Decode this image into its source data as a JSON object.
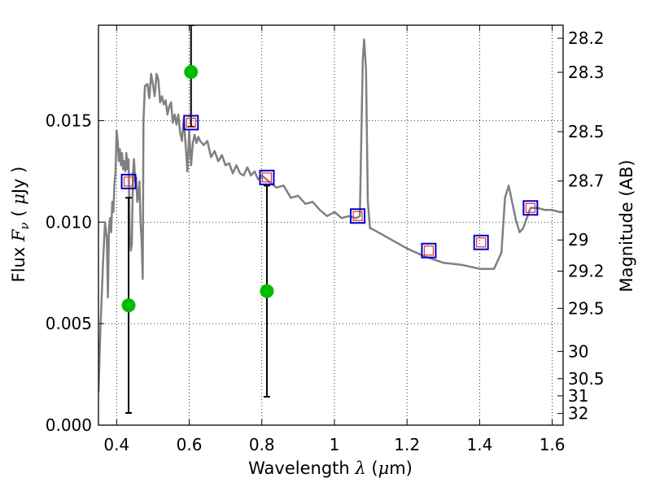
{
  "chart_data": {
    "type": "scatter",
    "xlabel": {
      "prefix": "Wavelength  ",
      "symbol": "λ",
      "open": " (",
      "unit_mu": "μ",
      "unit_rest": "m)"
    },
    "ylabel": {
      "prefix": "Flux  ",
      "symbol": "F",
      "subscript": "ν",
      "open": "  ( ",
      "unit_mu": "μ",
      "unit_rest": "Jy )"
    },
    "y2label": "Magnitude (AB)",
    "xlim": [
      0.35,
      1.63
    ],
    "ylim": [
      0.0,
      0.0197
    ],
    "grid": true,
    "xticks": [
      {
        "v": 0.4,
        "label": "0.4"
      },
      {
        "v": 0.6,
        "label": "0.6"
      },
      {
        "v": 0.8,
        "label": "0.8"
      },
      {
        "v": 1.0,
        "label": "1"
      },
      {
        "v": 1.2,
        "label": "1.2"
      },
      {
        "v": 1.4,
        "label": "1.4"
      },
      {
        "v": 1.6,
        "label": "1.6"
      }
    ],
    "yticks": [
      {
        "v": 0.0,
        "label": "0.000"
      },
      {
        "v": 0.005,
        "label": "0.005"
      },
      {
        "v": 0.01,
        "label": "0.010"
      },
      {
        "v": 0.015,
        "label": "0.015"
      }
    ],
    "y2ticks": [
      {
        "mag": 28.2,
        "label": "28.2"
      },
      {
        "mag": 28.3,
        "label": "28.3"
      },
      {
        "mag": 28.5,
        "label": "28.5"
      },
      {
        "mag": 28.7,
        "label": "28.7"
      },
      {
        "mag": 29,
        "label": "29"
      },
      {
        "mag": 29.2,
        "label": "29.2"
      },
      {
        "mag": 29.5,
        "label": "29.5"
      },
      {
        "mag": 30,
        "label": "30"
      },
      {
        "mag": 30.5,
        "label": "30.5"
      },
      {
        "mag": 31,
        "label": "31"
      },
      {
        "mag": 32,
        "label": "32"
      }
    ],
    "colors": {
      "model": "#808080",
      "observed": "#00bb00",
      "model_phot": "#0000cc",
      "model_phot_inner": "#dd3333",
      "errorbar": "#000000"
    },
    "series": [
      {
        "kind": "line",
        "x": [
          0.35,
          0.355,
          0.362,
          0.368,
          0.373,
          0.376,
          0.379,
          0.382,
          0.385,
          0.388,
          0.391,
          0.394,
          0.397,
          0.4,
          0.403,
          0.406,
          0.409,
          0.412,
          0.415,
          0.418,
          0.421,
          0.424,
          0.427,
          0.43,
          0.433,
          0.436,
          0.439,
          0.442,
          0.445,
          0.448,
          0.451,
          0.454,
          0.457,
          0.46,
          0.463,
          0.466,
          0.469,
          0.472,
          0.474,
          0.478,
          0.485,
          0.49,
          0.495,
          0.5,
          0.505,
          0.51,
          0.515,
          0.52,
          0.525,
          0.53,
          0.535,
          0.54,
          0.545,
          0.55,
          0.555,
          0.56,
          0.565,
          0.57,
          0.575,
          0.58,
          0.585,
          0.59,
          0.595,
          0.6,
          0.605,
          0.61,
          0.615,
          0.62,
          0.625,
          0.63,
          0.64,
          0.65,
          0.66,
          0.67,
          0.68,
          0.69,
          0.7,
          0.71,
          0.72,
          0.73,
          0.74,
          0.75,
          0.76,
          0.77,
          0.78,
          0.79,
          0.8,
          0.82,
          0.84,
          0.86,
          0.88,
          0.9,
          0.92,
          0.94,
          0.96,
          0.98,
          1.0,
          1.02,
          1.04,
          1.06,
          1.07,
          1.078,
          1.082,
          1.087,
          1.092,
          1.098,
          1.1,
          1.15,
          1.2,
          1.25,
          1.3,
          1.35,
          1.4,
          1.42,
          1.44,
          1.46,
          1.47,
          1.48,
          1.5,
          1.51,
          1.52,
          1.54,
          1.56,
          1.58,
          1.6,
          1.62,
          1.63
        ],
        "y": [
          0.0016,
          0.0045,
          0.0078,
          0.01,
          0.0092,
          0.0063,
          0.0097,
          0.0102,
          0.0095,
          0.011,
          0.0105,
          0.0118,
          0.0125,
          0.0145,
          0.014,
          0.013,
          0.0136,
          0.0128,
          0.0134,
          0.0126,
          0.013,
          0.0125,
          0.0134,
          0.0126,
          0.0131,
          0.0094,
          0.0086,
          0.0089,
          0.0124,
          0.0131,
          0.012,
          0.0122,
          0.011,
          0.0113,
          0.012,
          0.01,
          0.009,
          0.0072,
          0.015,
          0.0167,
          0.0168,
          0.0161,
          0.0173,
          0.0168,
          0.0162,
          0.0173,
          0.017,
          0.0159,
          0.0162,
          0.0158,
          0.016,
          0.0153,
          0.0157,
          0.0159,
          0.0149,
          0.0153,
          0.0148,
          0.0153,
          0.0144,
          0.014,
          0.0151,
          0.0138,
          0.0125,
          0.0145,
          0.0128,
          0.0139,
          0.0143,
          0.0139,
          0.0142,
          0.014,
          0.0138,
          0.014,
          0.0132,
          0.0135,
          0.013,
          0.0133,
          0.0128,
          0.0129,
          0.0124,
          0.0128,
          0.0124,
          0.0123,
          0.0127,
          0.0123,
          0.0125,
          0.0121,
          0.0123,
          0.012,
          0.0117,
          0.0118,
          0.0112,
          0.0113,
          0.0109,
          0.011,
          0.0106,
          0.0103,
          0.0105,
          0.0102,
          0.0103,
          0.0102,
          0.0103,
          0.018,
          0.019,
          0.0175,
          0.011,
          0.0097,
          0.0097,
          0.0092,
          0.0087,
          0.0083,
          0.008,
          0.0079,
          0.0077,
          0.0077,
          0.0077,
          0.0085,
          0.0112,
          0.0118,
          0.0101,
          0.0095,
          0.0097,
          0.0107,
          0.0107,
          0.0106,
          0.0106,
          0.0105,
          0.0105
        ]
      },
      {
        "kind": "observed",
        "points": [
          {
            "x": 0.433,
            "y": 0.0059,
            "yerr_low": 0.0006,
            "yerr_high": 0.0112
          },
          {
            "x": 0.605,
            "y": 0.0174,
            "yerr_low": 0.0147,
            "yerr_high": 0.0197
          },
          {
            "x": 0.814,
            "y": 0.0066,
            "yerr_low": 0.0014,
            "yerr_high": 0.0118
          }
        ]
      },
      {
        "kind": "model_photometry",
        "points": [
          {
            "x": 0.433,
            "y": 0.012
          },
          {
            "x": 0.605,
            "y": 0.0149
          },
          {
            "x": 0.814,
            "y": 0.0122
          },
          {
            "x": 1.064,
            "y": 0.0103
          },
          {
            "x": 1.26,
            "y": 0.0086
          },
          {
            "x": 1.404,
            "y": 0.009
          },
          {
            "x": 1.54,
            "y": 0.0107
          }
        ]
      }
    ]
  }
}
